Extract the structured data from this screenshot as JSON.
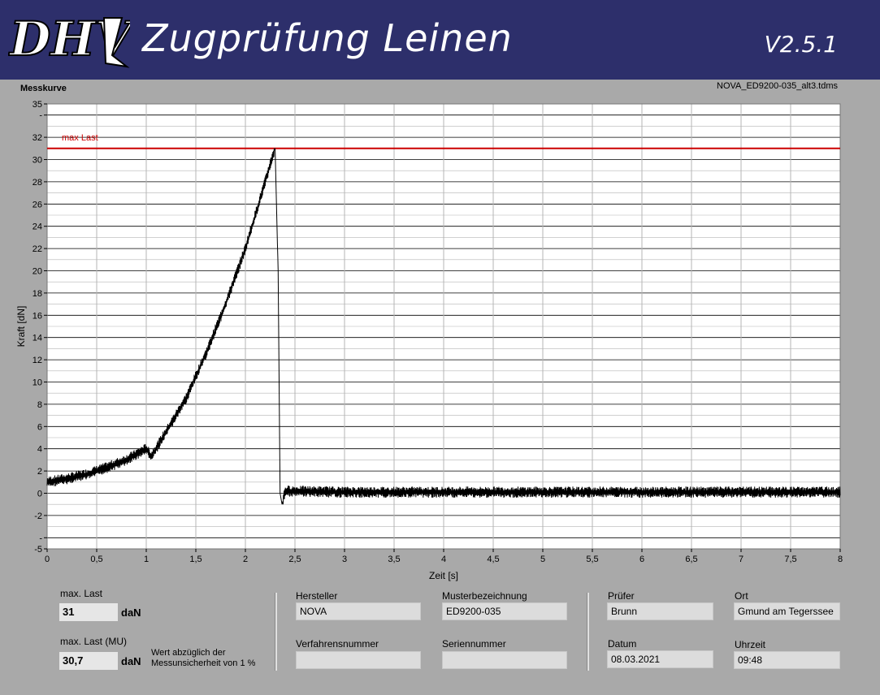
{
  "header": {
    "logo_text": "DHV",
    "title": "Zugprüfung Leinen",
    "version": "V2.5.1"
  },
  "graph": {
    "label": "Messkurve",
    "filename": "NOVA_ED9200-035_alt3.tdms"
  },
  "chart_data": {
    "type": "line",
    "xlabel": "Zeit [s]",
    "ylabel": "Kraft [dN]",
    "xlim": [
      0,
      8
    ],
    "ylim": [
      -5,
      35
    ],
    "x_ticks": [
      "0",
      "0,5",
      "1",
      "1,5",
      "2",
      "2,5",
      "3",
      "3,5",
      "4",
      "4,5",
      "5",
      "5,5",
      "6",
      "6,5",
      "7",
      "7,5",
      "8"
    ],
    "y_ticks": [
      "-5",
      "-",
      "-2",
      "0",
      "2",
      "4",
      "6",
      "8",
      "10",
      "12",
      "14",
      "16",
      "18",
      "20",
      "22",
      "24",
      "26",
      "28",
      "30",
      "32",
      "-",
      "35"
    ],
    "grid": true,
    "reference_line": {
      "name": "max Last",
      "value": 31,
      "color": "#cc0000"
    },
    "series": [
      {
        "color": "#000000",
        "x": [
          0,
          0.2,
          0.4,
          0.6,
          0.8,
          1.0,
          1.05,
          1.2,
          1.4,
          1.6,
          1.8,
          2.0,
          2.1,
          2.2,
          2.28,
          2.3,
          2.33,
          2.35,
          2.37,
          2.4,
          3,
          4,
          5,
          6,
          7,
          8
        ],
        "y": [
          1.0,
          1.3,
          1.7,
          2.3,
          3.0,
          4.0,
          3.3,
          5.5,
          8.5,
          12.5,
          17.0,
          22.0,
          25.0,
          28.0,
          30.5,
          31.0,
          20.0,
          0.0,
          -1.0,
          0.2,
          0.1,
          0.1,
          0.1,
          0.1,
          0.1,
          0.1
        ],
        "noise_amplitude": 0.5
      }
    ]
  },
  "results": {
    "max_last_label": "max. Last",
    "max_last_value": "31",
    "max_last_unit": "daN",
    "max_last_mu_label": "max. Last (MU)",
    "max_last_mu_value": "30,7",
    "max_last_mu_unit": "daN",
    "mu_note_line1": "Wert abzüglich der",
    "mu_note_line2": "Messunsicherheit von 1 %"
  },
  "info": {
    "hersteller_label": "Hersteller",
    "hersteller_value": "NOVA",
    "musterbezeichnung_label": "Musterbezeichnung",
    "musterbezeichnung_value": "ED9200-035",
    "verfahrensnummer_label": "Verfahrensnummer",
    "verfahrensnummer_value": "",
    "seriennummer_label": "Seriennummer",
    "seriennummer_value": "",
    "pruefer_label": "Prüfer",
    "pruefer_value": "Brunn",
    "ort_label": "Ort",
    "ort_value": "Gmund am Tegerssee",
    "datum_label": "Datum",
    "datum_value": "08.03.2021",
    "uhrzeit_label": "Uhrzeit",
    "uhrzeit_value": "09:48"
  }
}
